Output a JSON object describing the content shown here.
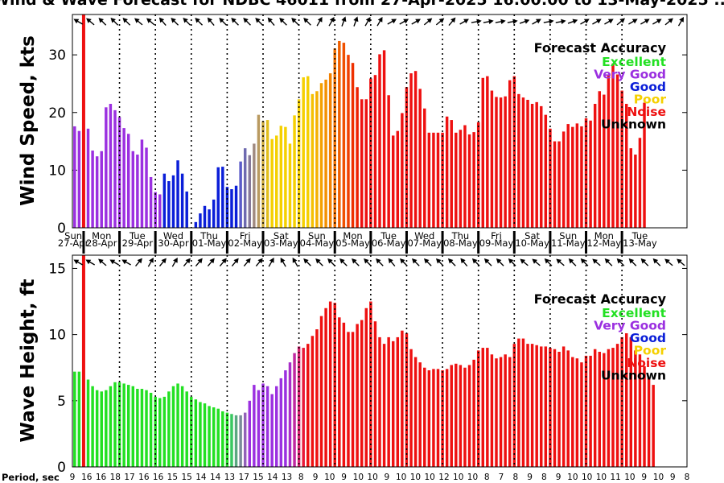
{
  "title": "Wind & Wave Forecast for NDBC 46011 from 27-Apr-2025 16:00:00 to 13-May-2025 ...",
  "legend": {
    "title": "Forecast Accuracy",
    "items": [
      {
        "label": "Excellent",
        "color": "#22e022"
      },
      {
        "label": "Very Good",
        "color": "#9b30e0"
      },
      {
        "label": "Good",
        "color": "#0a1ed8"
      },
      {
        "label": "Poor",
        "color": "#f5d000"
      },
      {
        "label": "Noise",
        "color": "#ee1010"
      },
      {
        "label": "Unknown",
        "color": "#000000"
      }
    ]
  },
  "days": {
    "names": [
      "Sun",
      "Mon",
      "Tue",
      "Wed",
      "Thu",
      "Fri",
      "Sat",
      "Sun",
      "Mon",
      "Tue",
      "Wed",
      "Thu",
      "Fri",
      "Sat",
      "Sun",
      "Mon",
      "Tue"
    ],
    "dates": [
      "27-Apr",
      "28-Apr",
      "29-Apr",
      "30-Apr",
      "01-May",
      "02-May",
      "03-May",
      "04-May",
      "05-May",
      "06-May",
      "07-May",
      "08-May",
      "09-May",
      "10-May",
      "11-May",
      "12-May",
      "13-May"
    ]
  },
  "period_label": "Period, sec",
  "chart_data": [
    {
      "type": "bar",
      "ylabel": "Wind Speed, kts",
      "ylim": [
        0,
        37
      ],
      "yticks": [
        0,
        10,
        20,
        30
      ],
      "x_range": [
        0,
        137
      ],
      "values": [
        17.6,
        16.8,
        0,
        17.2,
        13.4,
        12.4,
        13.3,
        20.9,
        21.5,
        20.4,
        19.2,
        17.3,
        16.3,
        13.3,
        12.7,
        15.3,
        13.9,
        8.8,
        6.2,
        5.8,
        9.4,
        8.1,
        9.1,
        11.7,
        9.4,
        6.3,
        0,
        1.0,
        2.5,
        3.8,
        3.2,
        4.9,
        10.5,
        10.6,
        7.1,
        6.7,
        7.3,
        11.5,
        13.8,
        12.6,
        14.6,
        19.6,
        18.5,
        18.7,
        15.4,
        16.0,
        17.7,
        17.5,
        14.6,
        19.5,
        22.3,
        26.1,
        26.3,
        23.2,
        23.7,
        25.1,
        25.7,
        26.8,
        31.1,
        32.4,
        32.1,
        30.0,
        28.6,
        24.4,
        22.3,
        22.3,
        25.9,
        26.5,
        30.1,
        30.8,
        23.0,
        16.0,
        16.8,
        19.9,
        24.4,
        26.8,
        27.2,
        24.1,
        20.7,
        16.5,
        16.5,
        16.5,
        16.5,
        19.3,
        18.7,
        16.5,
        17.0,
        17.8,
        16.2,
        16.6,
        18.3,
        26.0,
        26.3,
        23.8,
        22.7,
        22.6,
        22.8,
        25.6,
        26.3,
        23.2,
        22.6,
        22.2,
        21.5,
        21.8,
        21.1,
        19.6,
        17.2,
        15.0,
        15.0,
        16.7,
        18.0,
        17.5,
        18.1,
        17.6,
        19.0,
        18.6,
        21.5,
        23.7,
        23.1,
        26.5,
        28.5,
        26.6,
        23.8,
        21.5,
        13.8,
        12.7,
        15.6,
        21.7
      ],
      "value_colors": [
        "#9b30e0",
        "#9b30e0",
        "#000000",
        "#9b30e0",
        "#9b30e0",
        "#9b30e0",
        "#9b30e0",
        "#9b30e0",
        "#9b30e0",
        "#9b30e0",
        "#9b30e0",
        "#9b30e0",
        "#9b30e0",
        "#9b30e0",
        "#9b30e0",
        "#9b30e0",
        "#9b30e0",
        "#9b30e0",
        "#9b30e0",
        "#9b30e0",
        "#0a1ed8",
        "#0a1ed8",
        "#0a1ed8",
        "#0a1ed8",
        "#0a1ed8",
        "#0a1ed8",
        "#000000",
        "#0a1ed8",
        "#0a1ed8",
        "#0a1ed8",
        "#0a1ed8",
        "#0a1ed8",
        "#0a1ed8",
        "#0a1ed8",
        "#0a1ed8",
        "#0a1ed8",
        "#0a1ed8",
        "#5a5ac8",
        "#6e6ab0",
        "#86789a",
        "#a08a80",
        "#b99a60",
        "#d0ac3c",
        "#e2be1c",
        "#f5d000",
        "#f5d000",
        "#f5d000",
        "#f5d000",
        "#f5d000",
        "#f5d000",
        "#f5d000",
        "#f5d000",
        "#f5d000",
        "#f5c000",
        "#f4b000",
        "#f4a000",
        "#f39000",
        "#f28000",
        "#f17000",
        "#f06000",
        "#ef5000",
        "#ef4000",
        "#ee3000",
        "#ee2000",
        "#ee1010",
        "#ee1010",
        "#ee1010",
        "#ee1010",
        "#ee1010",
        "#ee1010",
        "#ee1010",
        "#ee1010",
        "#ee1010",
        "#ee1010",
        "#ee1010",
        "#ee1010",
        "#ee1010",
        "#ee1010",
        "#ee1010",
        "#ee1010",
        "#ee1010",
        "#ee1010",
        "#ee1010",
        "#ee1010",
        "#ee1010",
        "#ee1010",
        "#ee1010",
        "#ee1010",
        "#ee1010",
        "#ee1010",
        "#ee1010",
        "#ee1010",
        "#ee1010",
        "#ee1010",
        "#ee1010",
        "#ee1010",
        "#ee1010",
        "#ee1010",
        "#ee1010",
        "#ee1010",
        "#ee1010",
        "#ee1010",
        "#ee1010",
        "#ee1010",
        "#ee1010",
        "#ee1010",
        "#ee1010",
        "#ee1010",
        "#ee1010",
        "#ee1010",
        "#ee1010",
        "#ee1010",
        "#ee1010",
        "#ee1010",
        "#ee1010",
        "#ee1010",
        "#ee1010",
        "#ee1010",
        "#ee1010",
        "#ee1010",
        "#ee1010",
        "#ee1010",
        "#ee1010",
        "#ee1010",
        "#ee1010",
        "#ee1010",
        "#ee1010",
        "#ee1010"
      ],
      "day_separators": [
        2.5,
        10.5,
        18.5,
        26.5,
        34.5,
        42.5,
        50.5,
        58.5,
        66.5,
        74.5,
        82.5,
        90.5,
        98.5,
        106.5,
        114.5,
        122.5
      ],
      "day_label_positions": [
        0.2,
        6.5,
        14.5,
        22.5,
        30.5,
        38.5,
        46.5,
        54.5,
        62.5,
        70.5,
        78.5,
        86.5,
        94.5,
        102.5,
        110.5,
        118.5,
        126.5
      ],
      "now_line_x": 2.5,
      "wind_direction_deg": [
        300,
        310,
        315,
        315,
        315,
        310,
        310,
        320,
        315,
        315,
        315,
        320,
        315,
        315,
        315,
        315,
        320,
        315,
        315,
        315,
        30,
        30,
        20,
        20,
        30,
        30,
        60,
        60,
        60,
        50,
        50,
        40,
        60,
        80,
        80,
        80,
        80,
        70,
        60,
        80,
        80,
        70,
        60,
        60,
        60,
        50,
        60,
        60,
        60,
        50,
        30
      ],
      "wind_arrow_positions": [
        3.2,
        4.8,
        6.4,
        8.0,
        9.6,
        11.2,
        12.8,
        14.4,
        16.0,
        17.6,
        19.2,
        20.8,
        22.4,
        24.0,
        25.6,
        27.2,
        28.8,
        30.4,
        32.0,
        33.6,
        35.2,
        36.8,
        38.4,
        40.0,
        41.6,
        43.2,
        44.8,
        46.4,
        48.0,
        49.6,
        51.2,
        52.8,
        54.4,
        56.0,
        57.6,
        59.2,
        60.8,
        62.4,
        64.0,
        65.6,
        67.2,
        68.8,
        70.4,
        72.0,
        73.6,
        75.2,
        76.8,
        78.4,
        80.0,
        81.6,
        83.2
      ]
    },
    {
      "type": "bar",
      "ylabel": "Wave Height, ft",
      "ylim": [
        0,
        16
      ],
      "yticks": [
        0,
        5,
        10,
        15
      ],
      "x_range": [
        0,
        137
      ],
      "values": [
        7.2,
        7.2,
        0,
        6.6,
        6.1,
        5.8,
        5.7,
        5.8,
        6.1,
        6.4,
        6.4,
        6.3,
        6.2,
        6.1,
        5.9,
        5.9,
        5.8,
        5.6,
        5.3,
        5.2,
        5.3,
        5.7,
        6.1,
        6.3,
        6.1,
        5.7,
        5.3,
        5.1,
        4.9,
        4.8,
        4.6,
        4.5,
        4.4,
        4.2,
        4.1,
        4.0,
        3.9,
        3.9,
        4.1,
        5.0,
        6.2,
        5.8,
        6.3,
        6.1,
        5.5,
        6.1,
        6.7,
        7.3,
        7.9,
        8.6,
        9.1,
        9.0,
        9.3,
        9.9,
        10.4,
        11.4,
        12.0,
        12.5,
        12.4,
        11.3,
        10.9,
        10.2,
        10.2,
        10.8,
        11.1,
        12.0,
        12.5,
        11.0,
        9.8,
        9.3,
        9.8,
        9.5,
        9.8,
        10.3,
        10.1,
        8.9,
        8.3,
        7.9,
        7.5,
        7.3,
        7.4,
        7.4,
        7.3,
        7.4,
        7.7,
        7.8,
        7.7,
        7.5,
        7.7,
        8.1,
        8.8,
        9.0,
        9.0,
        8.5,
        8.2,
        8.3,
        8.5,
        8.3,
        9.3,
        9.7,
        9.7,
        9.3,
        9.3,
        9.2,
        9.1,
        9.1,
        9.0,
        8.9,
        8.7,
        9.1,
        8.8,
        8.3,
        8.2,
        7.9,
        8.4,
        8.4,
        8.9,
        8.7,
        8.6,
        8.9,
        9.0,
        9.3,
        9.8,
        10.1,
        9.8,
        8.8,
        8.5,
        7.6,
        6.7,
        6.2
      ],
      "value_colors": [
        "#22e022",
        "#22e022",
        "#000000",
        "#22e022",
        "#22e022",
        "#22e022",
        "#22e022",
        "#22e022",
        "#22e022",
        "#22e022",
        "#22e022",
        "#22e022",
        "#22e022",
        "#22e022",
        "#22e022",
        "#22e022",
        "#22e022",
        "#22e022",
        "#22e022",
        "#22e022",
        "#22e022",
        "#22e022",
        "#22e022",
        "#22e022",
        "#22e022",
        "#22e022",
        "#22e022",
        "#22e022",
        "#22e022",
        "#22e022",
        "#22e022",
        "#22e022",
        "#22e022",
        "#22e022",
        "#22e022",
        "#38c860",
        "#5aa880",
        "#7a8a9a",
        "#9260b8",
        "#9b30e0",
        "#9b30e0",
        "#9b30e0",
        "#9b30e0",
        "#9b30e0",
        "#9b30e0",
        "#9b30e0",
        "#9b30e0",
        "#9b30e0",
        "#a82ec8",
        "#c028a0",
        "#d82070",
        "#e81838",
        "#ee1010",
        "#ee1010",
        "#ee1010",
        "#ee1010",
        "#ee1010",
        "#ee1010",
        "#ee1010",
        "#ee1010",
        "#ee1010",
        "#ee1010",
        "#ee1010",
        "#ee1010",
        "#ee1010",
        "#ee1010",
        "#ee1010",
        "#ee1010",
        "#ee1010",
        "#ee1010",
        "#ee1010",
        "#ee1010",
        "#ee1010",
        "#ee1010",
        "#ee1010",
        "#ee1010",
        "#ee1010",
        "#ee1010",
        "#ee1010",
        "#ee1010",
        "#ee1010",
        "#ee1010",
        "#ee1010",
        "#ee1010",
        "#ee1010",
        "#ee1010",
        "#ee1010",
        "#ee1010",
        "#ee1010",
        "#ee1010",
        "#ee1010",
        "#ee1010",
        "#ee1010",
        "#ee1010",
        "#ee1010",
        "#ee1010",
        "#ee1010",
        "#ee1010",
        "#ee1010",
        "#ee1010",
        "#ee1010",
        "#ee1010",
        "#ee1010",
        "#ee1010",
        "#ee1010",
        "#ee1010",
        "#ee1010",
        "#ee1010",
        "#ee1010",
        "#ee1010",
        "#ee1010",
        "#ee1010",
        "#ee1010",
        "#ee1010",
        "#ee1010",
        "#ee1010",
        "#ee1010",
        "#ee1010",
        "#ee1010",
        "#ee1010",
        "#ee1010",
        "#ee1010",
        "#ee1010",
        "#ee1010",
        "#ee1010",
        "#ee1010",
        "#ee1010",
        "#ee1010",
        "#ee1010",
        "#ee1010"
      ],
      "day_separators": [
        2.5,
        10.5,
        18.5,
        26.5,
        34.5,
        42.5,
        50.5,
        58.5,
        66.5,
        74.5,
        82.5,
        90.5,
        98.5,
        106.5,
        114.5,
        122.5
      ],
      "now_line_x": 2.5,
      "wave_direction_deg": [
        300,
        300,
        310,
        300,
        300,
        40,
        30,
        40,
        30,
        40,
        40,
        40,
        40,
        40,
        40,
        40,
        30,
        330,
        330,
        315,
        315,
        315,
        315,
        315,
        315,
        315,
        320,
        315,
        315,
        315,
        315,
        315,
        320,
        315,
        315,
        315,
        315,
        310,
        310,
        315,
        310,
        315,
        315,
        310,
        315,
        315,
        315,
        315,
        315,
        310,
        310
      ],
      "wave_arrow_positions": [
        3.2,
        4.8,
        6.4,
        8.0,
        9.6,
        11.2,
        12.8,
        14.4,
        16.0,
        17.6,
        19.2,
        20.8,
        22.4,
        24.0,
        25.6,
        27.2,
        28.8,
        30.4,
        32.0,
        33.6,
        35.2,
        36.8,
        38.4,
        40.0,
        41.6,
        43.2,
        44.8,
        46.4,
        48.0,
        49.6,
        51.2,
        52.8,
        54.4,
        56.0,
        57.6,
        59.2,
        60.8,
        62.4,
        64.0,
        65.6,
        67.2,
        68.8,
        70.4,
        72.0,
        73.6,
        75.2,
        76.8,
        78.4,
        80.0,
        81.6,
        83.2
      ]
    }
  ],
  "period_values": [
    "9",
    "16",
    "16",
    "18",
    "17",
    "16",
    "16",
    "15",
    "15",
    "14",
    "14",
    "13",
    "17",
    "15",
    "14",
    "13",
    "8",
    "9",
    "10",
    "9",
    "10",
    "10",
    "9",
    "10",
    "10",
    "10",
    "12",
    "10",
    "10",
    "8",
    "7",
    "8",
    "9",
    "8",
    "9",
    "10",
    "10",
    "10",
    "11",
    "10",
    "9",
    "10",
    "9",
    "8"
  ]
}
